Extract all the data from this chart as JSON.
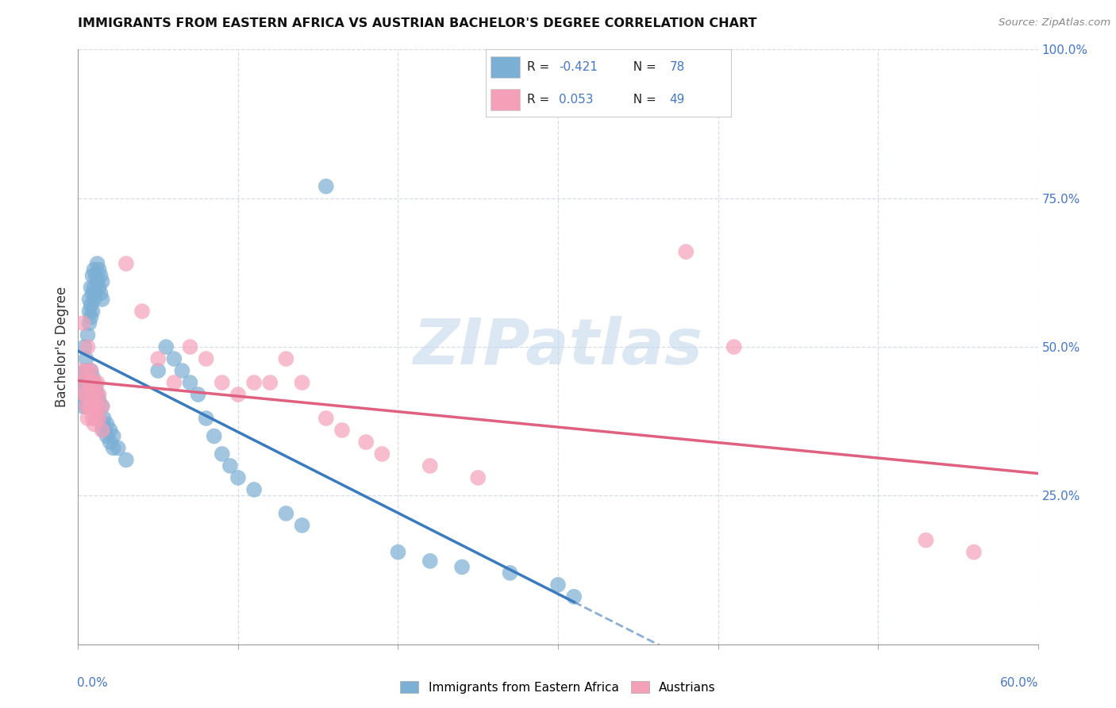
{
  "title": "IMMIGRANTS FROM EASTERN AFRICA VS AUSTRIAN BACHELOR'S DEGREE CORRELATION CHART",
  "source": "Source: ZipAtlas.com",
  "ylabel": "Bachelor's Degree",
  "right_yticks": [
    "100.0%",
    "75.0%",
    "50.0%",
    "25.0%"
  ],
  "right_ytick_vals": [
    1.0,
    0.75,
    0.5,
    0.25
  ],
  "xlim": [
    0.0,
    0.6
  ],
  "ylim": [
    0.0,
    1.0
  ],
  "blue_dots": [
    [
      0.002,
      0.455
    ],
    [
      0.003,
      0.44
    ],
    [
      0.004,
      0.5
    ],
    [
      0.005,
      0.48
    ],
    [
      0.005,
      0.46
    ],
    [
      0.006,
      0.52
    ],
    [
      0.007,
      0.58
    ],
    [
      0.007,
      0.56
    ],
    [
      0.007,
      0.54
    ],
    [
      0.008,
      0.6
    ],
    [
      0.008,
      0.57
    ],
    [
      0.008,
      0.55
    ],
    [
      0.009,
      0.62
    ],
    [
      0.009,
      0.59
    ],
    [
      0.009,
      0.56
    ],
    [
      0.01,
      0.63
    ],
    [
      0.01,
      0.6
    ],
    [
      0.01,
      0.58
    ],
    [
      0.011,
      0.62
    ],
    [
      0.011,
      0.59
    ],
    [
      0.012,
      0.64
    ],
    [
      0.012,
      0.61
    ],
    [
      0.013,
      0.63
    ],
    [
      0.013,
      0.6
    ],
    [
      0.014,
      0.62
    ],
    [
      0.014,
      0.59
    ],
    [
      0.015,
      0.61
    ],
    [
      0.015,
      0.58
    ],
    [
      0.002,
      0.42
    ],
    [
      0.003,
      0.4
    ],
    [
      0.004,
      0.44
    ],
    [
      0.005,
      0.42
    ],
    [
      0.005,
      0.4
    ],
    [
      0.006,
      0.45
    ],
    [
      0.006,
      0.43
    ],
    [
      0.006,
      0.41
    ],
    [
      0.007,
      0.44
    ],
    [
      0.007,
      0.42
    ],
    [
      0.008,
      0.46
    ],
    [
      0.008,
      0.44
    ],
    [
      0.009,
      0.45
    ],
    [
      0.009,
      0.43
    ],
    [
      0.01,
      0.44
    ],
    [
      0.01,
      0.42
    ],
    [
      0.011,
      0.43
    ],
    [
      0.011,
      0.41
    ],
    [
      0.012,
      0.42
    ],
    [
      0.012,
      0.4
    ],
    [
      0.013,
      0.41
    ],
    [
      0.013,
      0.38
    ],
    [
      0.015,
      0.4
    ],
    [
      0.015,
      0.37
    ],
    [
      0.016,
      0.38
    ],
    [
      0.016,
      0.36
    ],
    [
      0.018,
      0.37
    ],
    [
      0.018,
      0.35
    ],
    [
      0.02,
      0.36
    ],
    [
      0.02,
      0.34
    ],
    [
      0.022,
      0.35
    ],
    [
      0.022,
      0.33
    ],
    [
      0.025,
      0.33
    ],
    [
      0.03,
      0.31
    ],
    [
      0.05,
      0.46
    ],
    [
      0.055,
      0.5
    ],
    [
      0.06,
      0.48
    ],
    [
      0.065,
      0.46
    ],
    [
      0.07,
      0.44
    ],
    [
      0.075,
      0.42
    ],
    [
      0.08,
      0.38
    ],
    [
      0.085,
      0.35
    ],
    [
      0.09,
      0.32
    ],
    [
      0.095,
      0.3
    ],
    [
      0.1,
      0.28
    ],
    [
      0.11,
      0.26
    ],
    [
      0.13,
      0.22
    ],
    [
      0.14,
      0.2
    ],
    [
      0.155,
      0.77
    ],
    [
      0.2,
      0.155
    ],
    [
      0.22,
      0.14
    ],
    [
      0.24,
      0.13
    ],
    [
      0.27,
      0.12
    ],
    [
      0.3,
      0.1
    ],
    [
      0.31,
      0.08
    ]
  ],
  "pink_dots": [
    [
      0.001,
      0.44
    ],
    [
      0.002,
      0.46
    ],
    [
      0.003,
      0.54
    ],
    [
      0.004,
      0.42
    ],
    [
      0.005,
      0.42
    ],
    [
      0.005,
      0.4
    ],
    [
      0.006,
      0.5
    ],
    [
      0.006,
      0.46
    ],
    [
      0.006,
      0.38
    ],
    [
      0.007,
      0.44
    ],
    [
      0.007,
      0.4
    ],
    [
      0.008,
      0.46
    ],
    [
      0.008,
      0.44
    ],
    [
      0.008,
      0.4
    ],
    [
      0.009,
      0.42
    ],
    [
      0.009,
      0.38
    ],
    [
      0.01,
      0.44
    ],
    [
      0.01,
      0.4
    ],
    [
      0.01,
      0.37
    ],
    [
      0.011,
      0.42
    ],
    [
      0.011,
      0.38
    ],
    [
      0.012,
      0.44
    ],
    [
      0.012,
      0.4
    ],
    [
      0.013,
      0.42
    ],
    [
      0.013,
      0.38
    ],
    [
      0.015,
      0.4
    ],
    [
      0.015,
      0.36
    ],
    [
      0.03,
      0.64
    ],
    [
      0.04,
      0.56
    ],
    [
      0.05,
      0.48
    ],
    [
      0.06,
      0.44
    ],
    [
      0.07,
      0.5
    ],
    [
      0.08,
      0.48
    ],
    [
      0.09,
      0.44
    ],
    [
      0.1,
      0.42
    ],
    [
      0.11,
      0.44
    ],
    [
      0.12,
      0.44
    ],
    [
      0.13,
      0.48
    ],
    [
      0.14,
      0.44
    ],
    [
      0.155,
      0.38
    ],
    [
      0.165,
      0.36
    ],
    [
      0.18,
      0.34
    ],
    [
      0.19,
      0.32
    ],
    [
      0.22,
      0.3
    ],
    [
      0.25,
      0.28
    ],
    [
      0.38,
      0.66
    ],
    [
      0.41,
      0.5
    ],
    [
      0.53,
      0.175
    ],
    [
      0.56,
      0.155
    ]
  ],
  "blue_color": "#7bafd4",
  "pink_color": "#f4a0b8",
  "blue_line_color": "#3a7abf",
  "pink_line_color": "#e06080",
  "watermark": "ZIPatlas",
  "bg_color": "#ffffff",
  "grid_color": "#d5dde8"
}
